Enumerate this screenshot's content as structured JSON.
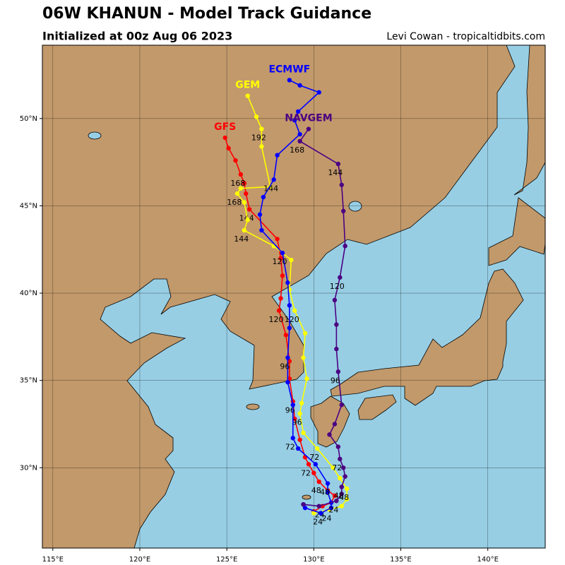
{
  "header": {
    "title": "06W KHANUN - Model Track Guidance",
    "subtitle": "Initialized at 00z Aug 06 2023",
    "credit": "Levi Cowan - tropicaltidbits.com"
  },
  "map": {
    "type": "map",
    "xlim": [
      114.4,
      143.3
    ],
    "ylim": [
      25.4,
      54.2
    ],
    "xticks": [
      {
        "value": 115,
        "label": "115°E"
      },
      {
        "value": 120,
        "label": "120°E"
      },
      {
        "value": 125,
        "label": "125°E"
      },
      {
        "value": 130,
        "label": "130°E"
      },
      {
        "value": 135,
        "label": "135°E"
      },
      {
        "value": 140,
        "label": "140°E"
      }
    ],
    "yticks": [
      {
        "value": 30,
        "label": "30°N"
      },
      {
        "value": 35,
        "label": "35°N"
      },
      {
        "value": 40,
        "label": "40°N"
      },
      {
        "value": 45,
        "label": "45°N"
      },
      {
        "value": 50,
        "label": "50°N"
      }
    ],
    "grid": true,
    "tracks": [
      {
        "name": "GFS",
        "color": "#ff0000",
        "points": [
          {
            "lon": 130.0,
            "lat": 27.5
          },
          {
            "lon": 130.5,
            "lat": 27.8,
            "label": "24"
          },
          {
            "lon": 131.0,
            "lat": 28.0
          },
          {
            "lon": 131.2,
            "lat": 28.4
          },
          {
            "lon": 130.8,
            "lat": 28.7
          },
          {
            "lon": 130.3,
            "lat": 29.2,
            "label": "48"
          },
          {
            "lon": 130.0,
            "lat": 29.7
          },
          {
            "lon": 129.7,
            "lat": 30.2,
            "label": "72"
          },
          {
            "lon": 129.5,
            "lat": 30.6
          },
          {
            "lon": 129.2,
            "lat": 31.6
          },
          {
            "lon": 128.9,
            "lat": 32.8
          },
          {
            "lon": 128.8,
            "lat": 33.8,
            "label": "96"
          },
          {
            "lon": 128.6,
            "lat": 35.1
          },
          {
            "lon": 128.6,
            "lat": 36.1
          },
          {
            "lon": 128.4,
            "lat": 37.6
          },
          {
            "lon": 128.0,
            "lat": 39.0,
            "label": "120"
          },
          {
            "lon": 128.1,
            "lat": 39.7
          },
          {
            "lon": 128.2,
            "lat": 41.0
          },
          {
            "lon": 128.1,
            "lat": 42.0
          },
          {
            "lon": 127.9,
            "lat": 43.1
          },
          {
            "lon": 126.3,
            "lat": 44.8,
            "label": "144"
          },
          {
            "lon": 126.1,
            "lat": 45.7
          },
          {
            "lon": 126.0,
            "lat": 46.3
          },
          {
            "lon": 125.8,
            "lat": 46.8,
            "label": "168"
          },
          {
            "lon": 125.5,
            "lat": 47.6
          },
          {
            "lon": 125.1,
            "lat": 48.3
          },
          {
            "lon": 124.9,
            "lat": 48.9
          }
        ]
      },
      {
        "name": "GEM",
        "color": "#ffff00",
        "points": [
          {
            "lon": 130.0,
            "lat": 27.4
          },
          {
            "lon": 130.9,
            "lat": 27.6,
            "label": "24"
          },
          {
            "lon": 131.6,
            "lat": 27.8
          },
          {
            "lon": 131.9,
            "lat": 28.2
          },
          {
            "lon": 131.9,
            "lat": 28.8,
            "label": "48"
          },
          {
            "lon": 131.5,
            "lat": 29.4
          },
          {
            "lon": 131.1,
            "lat": 30.0
          },
          {
            "lon": 130.2,
            "lat": 31.1,
            "label": "72"
          },
          {
            "lon": 129.4,
            "lat": 32.0
          },
          {
            "lon": 129.2,
            "lat": 33.1,
            "label": "96"
          },
          {
            "lon": 129.3,
            "lat": 33.7
          },
          {
            "lon": 129.6,
            "lat": 35.1
          },
          {
            "lon": 129.4,
            "lat": 36.3
          },
          {
            "lon": 129.5,
            "lat": 37.7
          },
          {
            "lon": 128.9,
            "lat": 39.0,
            "label": "120"
          },
          {
            "lon": 128.6,
            "lat": 40.2
          },
          {
            "lon": 128.7,
            "lat": 41.9
          },
          {
            "lon": 127.7,
            "lat": 42.7
          },
          {
            "lon": 126.0,
            "lat": 43.6,
            "label": "144"
          },
          {
            "lon": 126.2,
            "lat": 44.2
          },
          {
            "lon": 126.0,
            "lat": 45.2
          },
          {
            "lon": 125.6,
            "lat": 45.7,
            "label": "168"
          },
          {
            "lon": 125.8,
            "lat": 46.0
          },
          {
            "lon": 127.5,
            "lat": 46.1
          },
          {
            "lon": 127.0,
            "lat": 48.4
          },
          {
            "lon": 127.0,
            "lat": 49.4,
            "label": "192"
          },
          {
            "lon": 126.7,
            "lat": 50.1
          },
          {
            "lon": 126.2,
            "lat": 51.3
          }
        ]
      },
      {
        "name": "ECMWF",
        "color": "#0000ff",
        "points": [
          {
            "lon": 129.4,
            "lat": 27.9
          },
          {
            "lon": 129.5,
            "lat": 27.7
          },
          {
            "lon": 130.4,
            "lat": 27.4,
            "label": "24"
          },
          {
            "lon": 131.0,
            "lat": 27.7
          },
          {
            "lon": 131.0,
            "lat": 28.0
          },
          {
            "lon": 130.8,
            "lat": 28.6
          },
          {
            "lon": 130.8,
            "lat": 29.1,
            "label": "48"
          },
          {
            "lon": 130.1,
            "lat": 30.2
          },
          {
            "lon": 129.1,
            "lat": 31.1
          },
          {
            "lon": 128.8,
            "lat": 31.7,
            "label": "72"
          },
          {
            "lon": 128.8,
            "lat": 33.6
          },
          {
            "lon": 128.5,
            "lat": 34.9
          },
          {
            "lon": 128.5,
            "lat": 36.3,
            "label": "96"
          },
          {
            "lon": 128.6,
            "lat": 38.0
          },
          {
            "lon": 128.6,
            "lat": 39.3
          },
          {
            "lon": 128.5,
            "lat": 40.6
          },
          {
            "lon": 128.2,
            "lat": 42.3,
            "label": "120"
          },
          {
            "lon": 127.0,
            "lat": 43.6
          },
          {
            "lon": 126.9,
            "lat": 44.5
          },
          {
            "lon": 127.1,
            "lat": 45.5
          },
          {
            "lon": 127.7,
            "lat": 46.5,
            "label": "144"
          },
          {
            "lon": 127.9,
            "lat": 47.9
          },
          {
            "lon": 129.2,
            "lat": 49.1
          },
          {
            "lon": 128.9,
            "lat": 49.9
          },
          {
            "lon": 129.1,
            "lat": 50.4
          },
          {
            "lon": 130.3,
            "lat": 51.5
          },
          {
            "lon": 129.2,
            "lat": 51.9
          },
          {
            "lon": 128.6,
            "lat": 52.2
          }
        ]
      },
      {
        "name": "NAVGEM",
        "color": "#4b0082",
        "points": [
          {
            "lon": 129.4,
            "lat": 27.9
          },
          {
            "lon": 130.3,
            "lat": 27.8
          },
          {
            "lon": 131.3,
            "lat": 28.1,
            "label": "24"
          },
          {
            "lon": 131.6,
            "lat": 28.5
          },
          {
            "lon": 131.6,
            "lat": 28.9,
            "label": "48"
          },
          {
            "lon": 131.8,
            "lat": 29.5
          },
          {
            "lon": 131.7,
            "lat": 30.0
          },
          {
            "lon": 131.5,
            "lat": 30.5,
            "label": "72"
          },
          {
            "lon": 131.4,
            "lat": 31.2
          },
          {
            "lon": 130.9,
            "lat": 31.9
          },
          {
            "lon": 131.2,
            "lat": 32.5
          },
          {
            "lon": 131.6,
            "lat": 33.6
          },
          {
            "lon": 131.4,
            "lat": 35.5,
            "label": "96"
          },
          {
            "lon": 131.3,
            "lat": 36.8
          },
          {
            "lon": 131.3,
            "lat": 38.2
          },
          {
            "lon": 131.2,
            "lat": 39.6
          },
          {
            "lon": 131.5,
            "lat": 40.9,
            "label": "120"
          },
          {
            "lon": 131.8,
            "lat": 42.7
          },
          {
            "lon": 131.7,
            "lat": 44.7
          },
          {
            "lon": 131.6,
            "lat": 46.2
          },
          {
            "lon": 131.4,
            "lat": 47.4,
            "label": "144"
          },
          {
            "lon": 129.2,
            "lat": 48.7,
            "label": "168"
          },
          {
            "lon": 129.7,
            "lat": 49.4
          }
        ]
      }
    ]
  }
}
